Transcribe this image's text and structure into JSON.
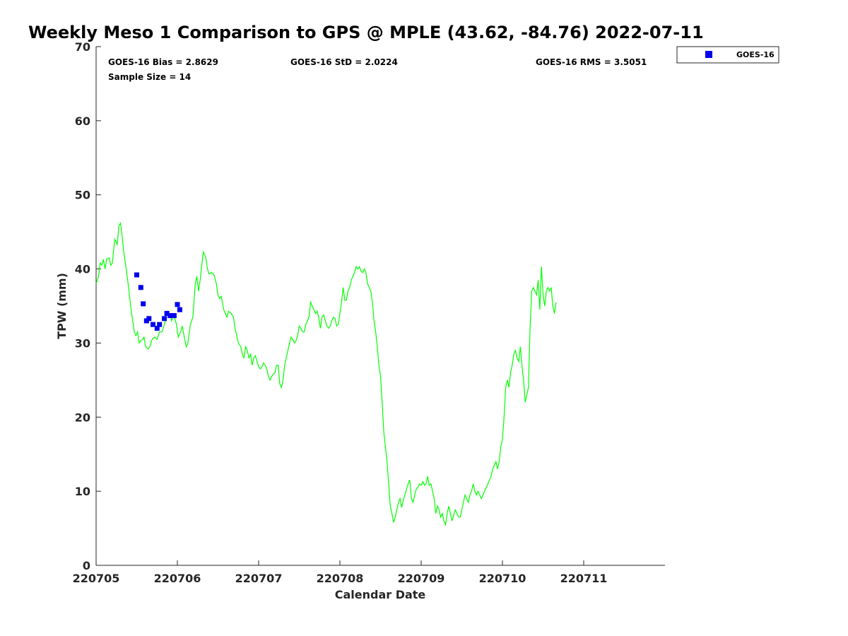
{
  "chart_data": {
    "type": "line",
    "title": "Weekly Meso 1 Comparison to GPS @ MPLE (43.62, -84.76) 2022-07-11",
    "xlabel": "Calendar Date",
    "ylabel": "TPW (mm)",
    "ylim": [
      0,
      70
    ],
    "xlim": [
      0,
      7
    ],
    "yticks": [
      "0",
      "10",
      "20",
      "30",
      "40",
      "50",
      "60",
      "70"
    ],
    "xticks": [
      "220705",
      "220706",
      "220707",
      "220708",
      "220709",
      "220710",
      "220711"
    ],
    "grid": false,
    "legend_position": "top-right, outside plot",
    "stats": {
      "bias": "GOES-16 Bias = 2.8629",
      "std": "GOES-16 StD = 2.0224",
      "rms": "GOES-16 RMS = 3.5051",
      "sample": "Sample Size = 14"
    },
    "series": [
      {
        "name": "",
        "kind": "line",
        "color": "#00ff00",
        "points": [
          [
            0.0,
            38.0
          ],
          [
            0.03,
            39.0
          ],
          [
            0.05,
            40.8
          ],
          [
            0.07,
            40.5
          ],
          [
            0.09,
            41.3
          ],
          [
            0.11,
            40.0
          ],
          [
            0.13,
            41.3
          ],
          [
            0.16,
            41.5
          ],
          [
            0.18,
            40.5
          ],
          [
            0.2,
            40.8
          ],
          [
            0.23,
            44.0
          ],
          [
            0.26,
            43.3
          ],
          [
            0.28,
            45.8
          ],
          [
            0.3,
            46.2
          ],
          [
            0.32,
            44.5
          ],
          [
            0.34,
            42.3
          ],
          [
            0.37,
            40.0
          ],
          [
            0.4,
            37.5
          ],
          [
            0.43,
            34.5
          ],
          [
            0.45,
            33.0
          ],
          [
            0.47,
            31.5
          ],
          [
            0.49,
            31.0
          ],
          [
            0.51,
            31.5
          ],
          [
            0.53,
            30.0
          ],
          [
            0.55,
            30.3
          ],
          [
            0.57,
            30.5
          ],
          [
            0.59,
            30.8
          ],
          [
            0.61,
            29.5
          ],
          [
            0.64,
            29.2
          ],
          [
            0.66,
            29.5
          ],
          [
            0.69,
            30.5
          ],
          [
            0.72,
            30.8
          ],
          [
            0.75,
            30.5
          ],
          [
            0.78,
            31.5
          ],
          [
            0.81,
            31.5
          ],
          [
            0.84,
            32.5
          ],
          [
            0.86,
            33.5
          ],
          [
            0.88,
            34.3
          ],
          [
            0.9,
            34.0
          ],
          [
            0.93,
            33.0
          ],
          [
            0.95,
            33.8
          ],
          [
            0.97,
            33.2
          ],
          [
            0.99,
            32.5
          ],
          [
            1.01,
            30.8
          ],
          [
            1.04,
            31.5
          ],
          [
            1.06,
            32.3
          ],
          [
            1.09,
            30.5
          ],
          [
            1.11,
            29.5
          ],
          [
            1.13,
            30.0
          ],
          [
            1.16,
            32.5
          ],
          [
            1.19,
            33.5
          ],
          [
            1.22,
            38.0
          ],
          [
            1.24,
            39.0
          ],
          [
            1.26,
            37.0
          ],
          [
            1.28,
            38.5
          ],
          [
            1.3,
            40.5
          ],
          [
            1.32,
            42.3
          ],
          [
            1.35,
            41.5
          ],
          [
            1.37,
            40.0
          ],
          [
            1.39,
            39.3
          ],
          [
            1.42,
            39.5
          ],
          [
            1.45,
            39.2
          ],
          [
            1.48,
            38.0
          ],
          [
            1.5,
            36.5
          ],
          [
            1.52,
            36.0
          ],
          [
            1.54,
            36.3
          ],
          [
            1.57,
            34.5
          ],
          [
            1.59,
            34.0
          ],
          [
            1.61,
            33.5
          ],
          [
            1.63,
            34.3
          ],
          [
            1.66,
            34.0
          ],
          [
            1.69,
            33.5
          ],
          [
            1.71,
            32.0
          ],
          [
            1.73,
            31.0
          ],
          [
            1.75,
            30.0
          ],
          [
            1.78,
            29.5
          ],
          [
            1.8,
            28.5
          ],
          [
            1.82,
            28.0
          ],
          [
            1.84,
            29.5
          ],
          [
            1.86,
            29.0
          ],
          [
            1.88,
            28.0
          ],
          [
            1.9,
            28.5
          ],
          [
            1.92,
            27.0
          ],
          [
            1.94,
            28.0
          ],
          [
            1.96,
            28.3
          ],
          [
            1.98,
            27.5
          ],
          [
            2.0,
            26.8
          ],
          [
            2.02,
            26.5
          ],
          [
            2.04,
            26.8
          ],
          [
            2.06,
            27.3
          ],
          [
            2.08,
            27.0
          ],
          [
            2.1,
            26.5
          ],
          [
            2.12,
            25.5
          ],
          [
            2.14,
            25.0
          ],
          [
            2.16,
            25.5
          ],
          [
            2.18,
            25.8
          ],
          [
            2.2,
            26.0
          ],
          [
            2.22,
            27.0
          ],
          [
            2.24,
            27.0
          ],
          [
            2.26,
            24.5
          ],
          [
            2.28,
            24.0
          ],
          [
            2.3,
            25.0
          ],
          [
            2.32,
            27.0
          ],
          [
            2.34,
            28.0
          ],
          [
            2.36,
            29.0
          ],
          [
            2.38,
            30.0
          ],
          [
            2.4,
            30.8
          ],
          [
            2.42,
            30.5
          ],
          [
            2.44,
            30.0
          ],
          [
            2.46,
            30.3
          ],
          [
            2.48,
            31.0
          ],
          [
            2.5,
            32.3
          ],
          [
            2.52,
            32.0
          ],
          [
            2.54,
            31.5
          ],
          [
            2.56,
            31.5
          ],
          [
            2.58,
            32.5
          ],
          [
            2.6,
            33.0
          ],
          [
            2.62,
            33.5
          ],
          [
            2.64,
            35.5
          ],
          [
            2.66,
            35.0
          ],
          [
            2.68,
            34.5
          ],
          [
            2.7,
            34.0
          ],
          [
            2.72,
            34.3
          ],
          [
            2.74,
            33.3
          ],
          [
            2.76,
            32.0
          ],
          [
            2.78,
            33.5
          ],
          [
            2.8,
            33.8
          ],
          [
            2.82,
            33.0
          ],
          [
            2.84,
            32.3
          ],
          [
            2.86,
            32.0
          ],
          [
            2.88,
            32.3
          ],
          [
            2.9,
            33.0
          ],
          [
            2.92,
            33.5
          ],
          [
            2.94,
            33.3
          ],
          [
            2.96,
            32.3
          ],
          [
            2.98,
            32.5
          ],
          [
            3.0,
            34.0
          ],
          [
            3.02,
            35.5
          ],
          [
            3.04,
            37.5
          ],
          [
            3.06,
            35.8
          ],
          [
            3.08,
            35.8
          ],
          [
            3.1,
            37.0
          ],
          [
            3.12,
            37.5
          ],
          [
            3.14,
            38.5
          ],
          [
            3.16,
            39.0
          ],
          [
            3.18,
            39.5
          ],
          [
            3.2,
            40.3
          ],
          [
            3.22,
            40.0
          ],
          [
            3.24,
            40.3
          ],
          [
            3.26,
            39.7
          ],
          [
            3.28,
            39.5
          ],
          [
            3.3,
            40.0
          ],
          [
            3.32,
            39.5
          ],
          [
            3.34,
            38.0
          ],
          [
            3.36,
            37.5
          ],
          [
            3.38,
            37.0
          ],
          [
            3.4,
            35.5
          ],
          [
            3.42,
            33.0
          ],
          [
            3.44,
            31.5
          ],
          [
            3.46,
            29.5
          ],
          [
            3.48,
            27.0
          ],
          [
            3.5,
            25.5
          ],
          [
            3.52,
            22.0
          ],
          [
            3.54,
            18.0
          ],
          [
            3.56,
            16.0
          ],
          [
            3.58,
            14.0
          ],
          [
            3.6,
            11.0
          ],
          [
            3.62,
            8.0
          ],
          [
            3.64,
            7.0
          ],
          [
            3.66,
            5.8
          ],
          [
            3.68,
            6.5
          ],
          [
            3.7,
            7.5
          ],
          [
            3.72,
            8.5
          ],
          [
            3.74,
            9.0
          ],
          [
            3.76,
            7.8
          ],
          [
            3.78,
            8.8
          ],
          [
            3.8,
            9.5
          ],
          [
            3.82,
            10.3
          ],
          [
            3.84,
            11.0
          ],
          [
            3.86,
            11.5
          ],
          [
            3.88,
            9.0
          ],
          [
            3.9,
            8.5
          ],
          [
            3.92,
            9.5
          ],
          [
            3.94,
            10.3
          ],
          [
            3.96,
            10.5
          ],
          [
            3.98,
            11.0
          ],
          [
            4.0,
            10.8
          ],
          [
            4.02,
            11.3
          ],
          [
            4.04,
            10.8
          ],
          [
            4.06,
            11.0
          ],
          [
            4.08,
            12.0
          ],
          [
            4.1,
            10.8
          ],
          [
            4.12,
            11.0
          ],
          [
            4.14,
            10.0
          ],
          [
            4.16,
            9.0
          ],
          [
            4.18,
            7.0
          ],
          [
            4.2,
            8.0
          ],
          [
            4.22,
            7.5
          ],
          [
            4.24,
            6.5
          ],
          [
            4.26,
            7.0
          ],
          [
            4.28,
            6.0
          ],
          [
            4.3,
            5.5
          ],
          [
            4.32,
            7.0
          ],
          [
            4.34,
            8.0
          ],
          [
            4.36,
            7.0
          ],
          [
            4.38,
            6.0
          ],
          [
            4.4,
            6.8
          ],
          [
            4.42,
            7.5
          ],
          [
            4.44,
            7.0
          ],
          [
            4.46,
            6.5
          ],
          [
            4.48,
            6.5
          ],
          [
            4.5,
            7.5
          ],
          [
            4.52,
            8.5
          ],
          [
            4.54,
            9.5
          ],
          [
            4.56,
            9.0
          ],
          [
            4.58,
            8.5
          ],
          [
            4.6,
            9.5
          ],
          [
            4.62,
            10.0
          ],
          [
            4.64,
            11.0
          ],
          [
            4.66,
            10.0
          ],
          [
            4.68,
            9.5
          ],
          [
            4.7,
            10.0
          ],
          [
            4.72,
            9.5
          ],
          [
            4.74,
            9.0
          ],
          [
            4.76,
            9.5
          ],
          [
            4.78,
            10.0
          ],
          [
            4.8,
            10.5
          ],
          [
            4.82,
            11.0
          ],
          [
            4.84,
            11.5
          ],
          [
            4.86,
            12.0
          ],
          [
            4.88,
            13.0
          ],
          [
            4.9,
            13.5
          ],
          [
            4.92,
            14.0
          ],
          [
            4.94,
            13.0
          ],
          [
            4.96,
            14.0
          ],
          [
            4.98,
            16.0
          ],
          [
            5.0,
            17.0
          ],
          [
            5.02,
            20.0
          ],
          [
            5.04,
            24.0
          ],
          [
            5.06,
            25.0
          ],
          [
            5.08,
            24.0
          ],
          [
            5.1,
            26.0
          ],
          [
            5.12,
            27.0
          ],
          [
            5.14,
            28.5
          ],
          [
            5.16,
            29.0
          ],
          [
            5.18,
            28.0
          ],
          [
            5.2,
            27.5
          ],
          [
            5.22,
            29.5
          ],
          [
            5.24,
            27.0
          ],
          [
            5.26,
            25.0
          ],
          [
            5.28,
            22.0
          ],
          [
            5.3,
            23.0
          ],
          [
            5.32,
            24.0
          ],
          [
            5.34,
            32.0
          ],
          [
            5.36,
            37.0
          ],
          [
            5.38,
            37.5
          ],
          [
            5.4,
            37.0
          ],
          [
            5.42,
            36.5
          ],
          [
            5.44,
            38.5
          ],
          [
            5.46,
            34.5
          ],
          [
            5.48,
            40.3
          ],
          [
            5.5,
            36.5
          ],
          [
            5.52,
            35.0
          ],
          [
            5.54,
            37.0
          ],
          [
            5.56,
            37.5
          ],
          [
            5.58,
            37.0
          ],
          [
            5.6,
            37.5
          ],
          [
            5.62,
            35.0
          ],
          [
            5.64,
            34.0
          ],
          [
            5.66,
            35.5
          ]
        ]
      },
      {
        "name": "GOES-16",
        "kind": "scatter",
        "color": "#0000ee",
        "points": [
          [
            0.5,
            39.2
          ],
          [
            0.55,
            37.5
          ],
          [
            0.58,
            35.3
          ],
          [
            0.62,
            33.0
          ],
          [
            0.65,
            33.3
          ],
          [
            0.7,
            32.5
          ],
          [
            0.75,
            32.0
          ],
          [
            0.78,
            32.5
          ],
          [
            0.84,
            33.3
          ],
          [
            0.87,
            34.0
          ],
          [
            0.91,
            33.7
          ],
          [
            0.96,
            33.7
          ],
          [
            1.0,
            35.2
          ],
          [
            1.03,
            34.5
          ]
        ]
      }
    ]
  }
}
